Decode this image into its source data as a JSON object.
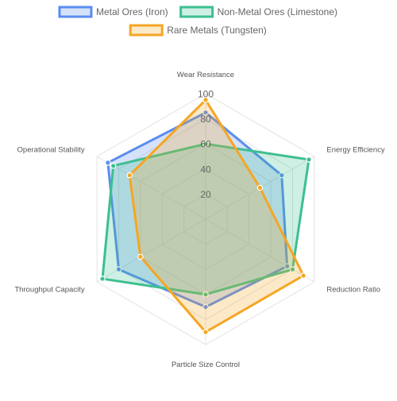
{
  "chart_data": {
    "type": "radar",
    "axes": [
      "Wear Resistance",
      "Energy Efficiency",
      "Reduction Ratio",
      "Particle Size Control",
      "Throughput Capacity",
      "Operational Stability"
    ],
    "tick_values": [
      20,
      40,
      60,
      80,
      100
    ],
    "tick_labels": [
      "20",
      "40",
      "60",
      "80",
      "100"
    ],
    "range": [
      0,
      100
    ],
    "grid": true,
    "legend_position": "top",
    "series": [
      {
        "name": "Metal Ores (Iron)",
        "values": [
          85,
          70,
          75,
          70,
          80,
          90
        ],
        "color": "#5b8def",
        "fill": "rgba(91,141,239,0.25)"
      },
      {
        "name": "Non-Metal Ores (Limestone)",
        "values": [
          60,
          95,
          80,
          60,
          95,
          85
        ],
        "color": "#3dbf8f",
        "fill": "rgba(61,191,143,0.25)"
      },
      {
        "name": "Rare Metals (Tungsten)",
        "values": [
          95,
          50,
          90,
          90,
          60,
          70
        ],
        "color": "#f5a623",
        "fill": "rgba(245,166,35,0.25)"
      }
    ]
  }
}
